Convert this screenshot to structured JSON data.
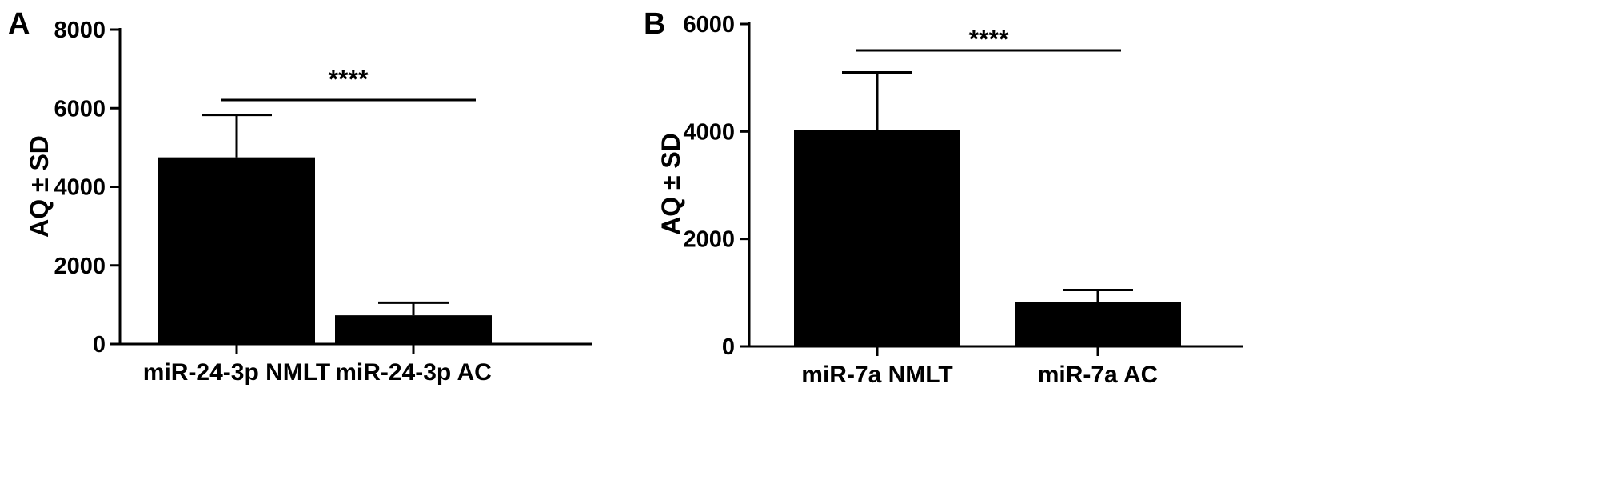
{
  "chart_data": [
    {
      "type": "bar",
      "panel": "A",
      "ylabel": "AQ ± SD",
      "ylim": [
        0,
        8000
      ],
      "yticks": [
        0,
        2000,
        4000,
        6000,
        8000
      ],
      "categories": [
        "miR-24-3p NMLT",
        "miR-24-3p AC"
      ],
      "values": [
        4750,
        730
      ],
      "errors": [
        1080,
        320
      ],
      "significance": "****",
      "bar_color": "#000000",
      "grid": false
    },
    {
      "type": "bar",
      "panel": "B",
      "ylabel": "AQ ± SD",
      "ylim": [
        0,
        6000
      ],
      "yticks": [
        0,
        2000,
        4000,
        6000
      ],
      "categories": [
        "miR-7a NMLT",
        "miR-7a AC"
      ],
      "values": [
        4020,
        820
      ],
      "errors": [
        1080,
        230
      ],
      "significance": "****",
      "bar_color": "#000000",
      "grid": false
    }
  ]
}
